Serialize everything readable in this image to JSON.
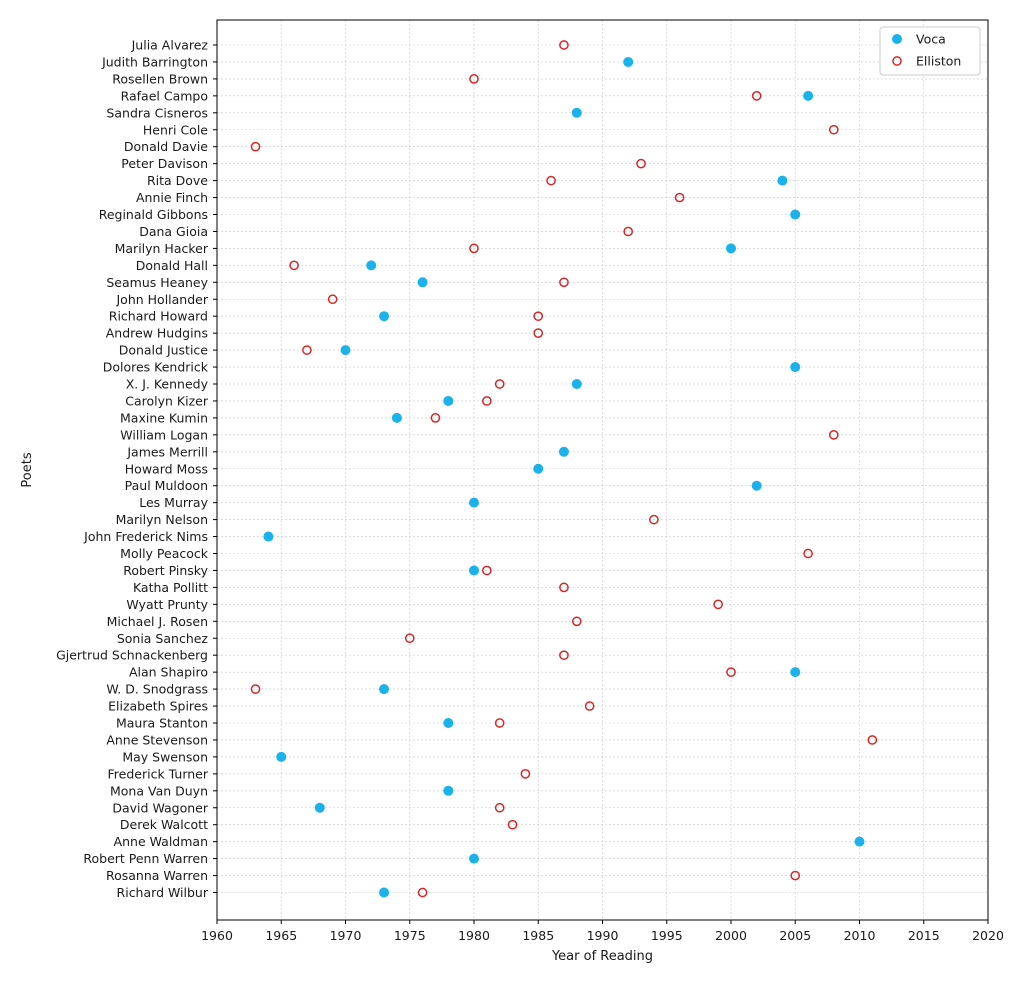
{
  "chart_data": {
    "type": "scatter",
    "xlabel": "Year of Reading",
    "ylabel": "Poets",
    "xlim": [
      1960,
      2020
    ],
    "xticks": [
      1960,
      1965,
      1970,
      1975,
      1980,
      1985,
      1990,
      1995,
      2000,
      2005,
      2010,
      2015,
      2020
    ],
    "grid": true,
    "legend_position": "top-right",
    "categories": [
      "Julia Alvarez",
      "Judith Barrington",
      "Rosellen Brown",
      "Rafael Campo",
      "Sandra Cisneros",
      "Henri Cole",
      "Donald Davie",
      "Peter Davison",
      "Rita Dove",
      "Annie Finch",
      "Reginald Gibbons",
      "Dana Gioia",
      "Marilyn Hacker",
      "Donald Hall",
      "Seamus Heaney",
      "John Hollander",
      "Richard Howard",
      "Andrew Hudgins",
      "Donald Justice",
      "Dolores Kendrick",
      "X. J. Kennedy",
      "Carolyn Kizer",
      "Maxine Kumin",
      "William Logan",
      "James Merrill",
      "Howard Moss",
      "Paul Muldoon",
      "Les Murray",
      "Marilyn Nelson",
      "John Frederick Nims",
      "Molly Peacock",
      "Robert Pinsky",
      "Katha Pollitt",
      "Wyatt Prunty",
      "Michael J. Rosen",
      "Sonia Sanchez",
      "Gjertrud Schnackenberg",
      "Alan Shapiro",
      "W. D. Snodgrass",
      "Elizabeth Spires",
      "Maura Stanton",
      "Anne Stevenson",
      "May Swenson",
      "Frederick Turner",
      "Mona Van Duyn",
      "David Wagoner",
      "Derek Walcott",
      "Anne Waldman",
      "Robert Penn Warren",
      "Rosanna Warren",
      "Richard Wilbur"
    ],
    "series": [
      {
        "name": "Voca",
        "color": "#1ab2ea",
        "marker": "filled-circle",
        "points": [
          {
            "poet": "Judith Barrington",
            "year": 1992
          },
          {
            "poet": "Rafael Campo",
            "year": 2006
          },
          {
            "poet": "Sandra Cisneros",
            "year": 1988
          },
          {
            "poet": "Rita Dove",
            "year": 2004
          },
          {
            "poet": "Reginald Gibbons",
            "year": 2005
          },
          {
            "poet": "Marilyn Hacker",
            "year": 2000
          },
          {
            "poet": "Donald Hall",
            "year": 1972
          },
          {
            "poet": "Seamus Heaney",
            "year": 1976
          },
          {
            "poet": "Richard Howard",
            "year": 1973
          },
          {
            "poet": "Donald Justice",
            "year": 1970
          },
          {
            "poet": "Dolores Kendrick",
            "year": 2005
          },
          {
            "poet": "X. J. Kennedy",
            "year": 1988
          },
          {
            "poet": "Carolyn Kizer",
            "year": 1978
          },
          {
            "poet": "Maxine Kumin",
            "year": 1974
          },
          {
            "poet": "James Merrill",
            "year": 1987
          },
          {
            "poet": "Howard Moss",
            "year": 1985
          },
          {
            "poet": "Paul Muldoon",
            "year": 2002
          },
          {
            "poet": "Les Murray",
            "year": 1980
          },
          {
            "poet": "John Frederick Nims",
            "year": 1964
          },
          {
            "poet": "Robert Pinsky",
            "year": 1980
          },
          {
            "poet": "Alan Shapiro",
            "year": 2005
          },
          {
            "poet": "W. D. Snodgrass",
            "year": 1973
          },
          {
            "poet": "Maura Stanton",
            "year": 1978
          },
          {
            "poet": "May Swenson",
            "year": 1965
          },
          {
            "poet": "Mona Van Duyn",
            "year": 1978
          },
          {
            "poet": "David Wagoner",
            "year": 1968
          },
          {
            "poet": "Anne Waldman",
            "year": 2010
          },
          {
            "poet": "Robert Penn Warren",
            "year": 1980
          },
          {
            "poet": "Richard Wilbur",
            "year": 1973
          }
        ]
      },
      {
        "name": "Elliston",
        "color": "#d62728",
        "marker": "open-circle",
        "points": [
          {
            "poet": "Julia Alvarez",
            "year": 1987
          },
          {
            "poet": "Rosellen Brown",
            "year": 1980
          },
          {
            "poet": "Rafael Campo",
            "year": 2002
          },
          {
            "poet": "Henri Cole",
            "year": 2008
          },
          {
            "poet": "Donald Davie",
            "year": 1963
          },
          {
            "poet": "Peter Davison",
            "year": 1993
          },
          {
            "poet": "Rita Dove",
            "year": 1986
          },
          {
            "poet": "Annie Finch",
            "year": 1996
          },
          {
            "poet": "Dana Gioia",
            "year": 1992
          },
          {
            "poet": "Marilyn Hacker",
            "year": 1980
          },
          {
            "poet": "Donald Hall",
            "year": 1966
          },
          {
            "poet": "Seamus Heaney",
            "year": 1987
          },
          {
            "poet": "John Hollander",
            "year": 1969
          },
          {
            "poet": "Richard Howard",
            "year": 1985
          },
          {
            "poet": "Andrew Hudgins",
            "year": 1985
          },
          {
            "poet": "Donald Justice",
            "year": 1967
          },
          {
            "poet": "X. J. Kennedy",
            "year": 1982
          },
          {
            "poet": "Carolyn Kizer",
            "year": 1981
          },
          {
            "poet": "Maxine Kumin",
            "year": 1977
          },
          {
            "poet": "William Logan",
            "year": 2008
          },
          {
            "poet": "Marilyn Nelson",
            "year": 1994
          },
          {
            "poet": "Molly Peacock",
            "year": 2006
          },
          {
            "poet": "Robert Pinsky",
            "year": 1981
          },
          {
            "poet": "Katha Pollitt",
            "year": 1987
          },
          {
            "poet": "Wyatt Prunty",
            "year": 1999
          },
          {
            "poet": "Michael J. Rosen",
            "year": 1988
          },
          {
            "poet": "Sonia Sanchez",
            "year": 1975
          },
          {
            "poet": "Gjertrud Schnackenberg",
            "year": 1987
          },
          {
            "poet": "Alan Shapiro",
            "year": 2000
          },
          {
            "poet": "W. D. Snodgrass",
            "year": 1963
          },
          {
            "poet": "Elizabeth Spires",
            "year": 1989
          },
          {
            "poet": "Maura Stanton",
            "year": 1982
          },
          {
            "poet": "Anne Stevenson",
            "year": 2011
          },
          {
            "poet": "Frederick Turner",
            "year": 1984
          },
          {
            "poet": "David Wagoner",
            "year": 1982
          },
          {
            "poet": "Derek Walcott",
            "year": 1983
          },
          {
            "poet": "Rosanna Warren",
            "year": 2005
          },
          {
            "poet": "Richard Wilbur",
            "year": 1976
          }
        ]
      }
    ]
  }
}
